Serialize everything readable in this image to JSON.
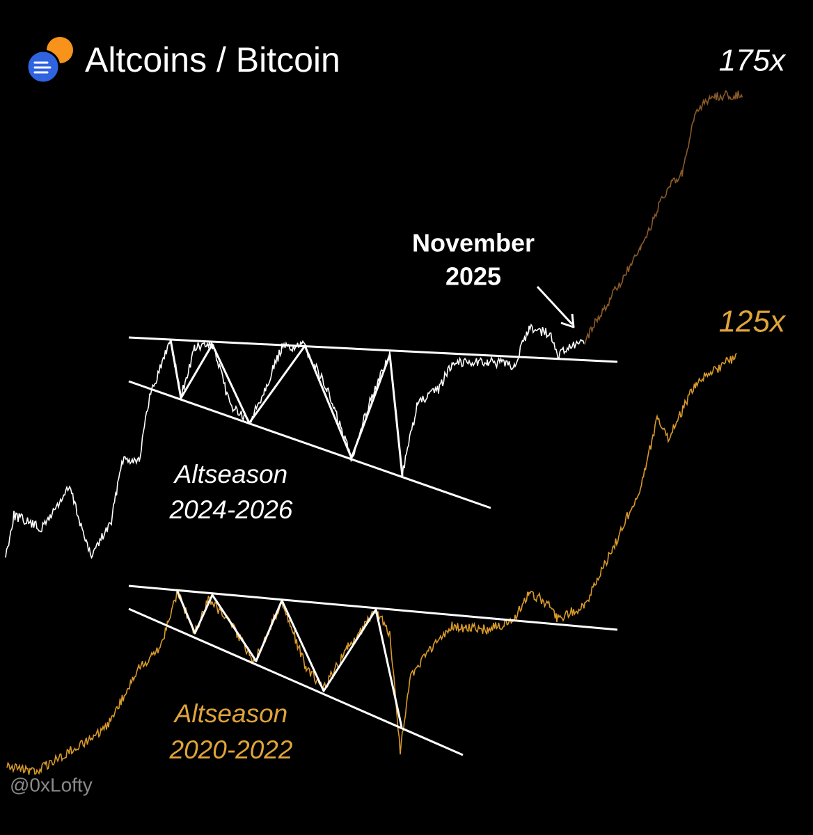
{
  "header": {
    "title": "Altcoins / Bitcoin"
  },
  "labels": {
    "top_multiple": "175x",
    "bottom_multiple": "125x",
    "callout": [
      "November",
      "2025"
    ],
    "upper_pattern": [
      "Altseason",
      "2024-2026"
    ],
    "lower_pattern": [
      "Altseason",
      "2020-2022"
    ]
  },
  "watermark": "@0xLofty"
}
